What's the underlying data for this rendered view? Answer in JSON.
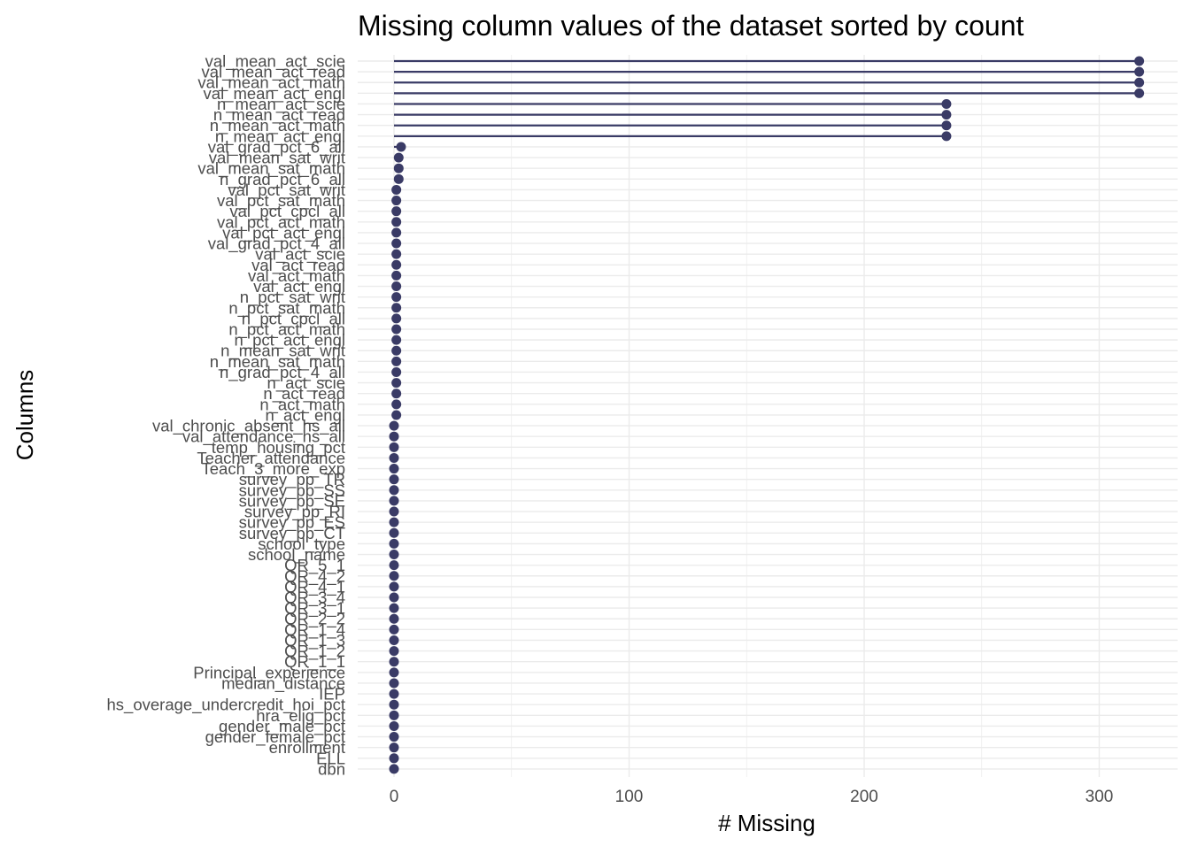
{
  "chart_data": {
    "type": "lollipop",
    "title": "Missing column values of the dataset sorted by count",
    "xlabel": "# Missing",
    "ylabel": "Columns",
    "xlim": [
      -15,
      333
    ],
    "x_ticks": [
      0,
      100,
      200,
      300
    ],
    "grid": true,
    "colors": {
      "mark": "#3a3b66",
      "grid": "#ebebeb",
      "text": "#4d4d4d"
    },
    "categories": [
      "val_mean_act_scie",
      "val_mean_act_read",
      "val_mean_act_math",
      "val_mean_act_engl",
      "n_mean_act_scie",
      "n_mean_act_read",
      "n_mean_act_math",
      "n_mean_act_engl",
      "val_grad_pct_6_all",
      "val_mean_sat_writ",
      "val_mean_sat_math",
      "n_grad_pct_6_all",
      "val_pct_sat_writ",
      "val_pct_sat_math",
      "val_pct_cpcl_all",
      "val_pct_act_math",
      "val_pct_act_engl",
      "val_grad_pct_4_all",
      "val_act_scie",
      "val_act_read",
      "val_act_math",
      "val_act_engl",
      "n_pct_sat_writ",
      "n_pct_sat_math",
      "n_pct_cpcl_all",
      "n_pct_act_math",
      "n_pct_act_engl",
      "n_mean_sat_writ",
      "n_mean_sat_math",
      "n_grad_pct_4_all",
      "n_act_scie",
      "n_act_read",
      "n_act_math",
      "n_act_engl",
      "val_chronic_absent_hs_all",
      "val_attendance_hs_all",
      "temp_housing_pct",
      "Teacher_attendance",
      "Teach_3_more_exp",
      "survey_pp_TR",
      "survey_pp_SS",
      "survey_pp_SE",
      "survey_pp_RI",
      "survey_pp_ES",
      "survey_pp_CT",
      "school_type",
      "school_name",
      "QR_5_1",
      "QR_4_2",
      "QR_4_1",
      "QR_3_4",
      "QR_3_1",
      "QR_2_2",
      "QR_1_4",
      "QR_1_3",
      "QR_1_2",
      "QR_1_1",
      "Principal_experience",
      "median_distance",
      "IEP",
      "hs_overage_undercredit_hoi_pct",
      "hra_elig_pct",
      "gender_male_pct",
      "gender_female_pct",
      "enrollment",
      "ELL",
      "dbn"
    ],
    "values": [
      317,
      317,
      317,
      317,
      235,
      235,
      235,
      235,
      3,
      2,
      2,
      2,
      1,
      1,
      1,
      1,
      1,
      1,
      1,
      1,
      1,
      1,
      1,
      1,
      1,
      1,
      1,
      1,
      1,
      1,
      1,
      1,
      1,
      1,
      0,
      0,
      0,
      0,
      0,
      0,
      0,
      0,
      0,
      0,
      0,
      0,
      0,
      0,
      0,
      0,
      0,
      0,
      0,
      0,
      0,
      0,
      0,
      0,
      0,
      0,
      0,
      0,
      0,
      0,
      0,
      0,
      0
    ]
  }
}
